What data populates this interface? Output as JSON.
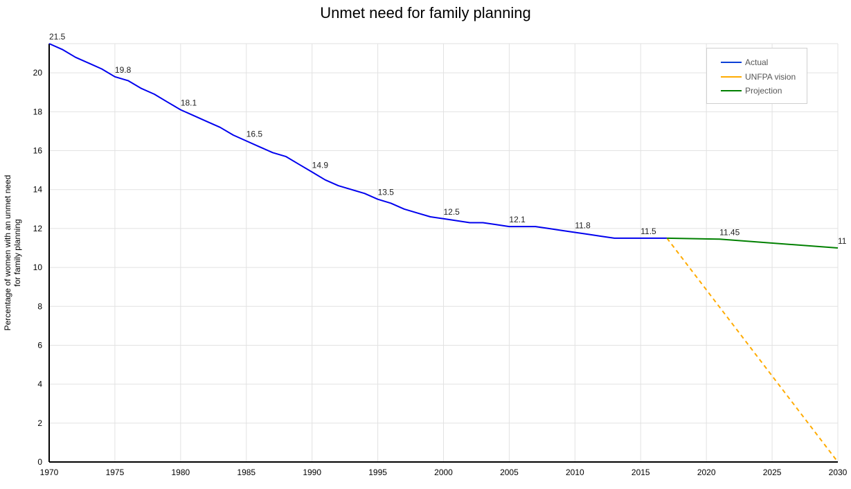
{
  "chart_data": {
    "type": "line",
    "title": "Unmet need for family planning",
    "xlabel": "",
    "ylabel": "Percentage of women with an unmet need\nfor family planning",
    "xlim": [
      1970,
      2030
    ],
    "ylim": [
      0,
      21.5
    ],
    "x_ticks": [
      "1970",
      "1975",
      "1980",
      "1985",
      "1990",
      "1995",
      "2000",
      "2005",
      "2010",
      "2015",
      "2020",
      "2025",
      "2030"
    ],
    "y_ticks": [
      "0",
      "2",
      "4",
      "6",
      "8",
      "10",
      "12",
      "14",
      "16",
      "18",
      "20"
    ],
    "grid": true,
    "legend_position": "top-right",
    "series": [
      {
        "name": "Actual",
        "color": "#0000ee",
        "style": "solid",
        "points": [
          [
            1970,
            21.5
          ],
          [
            1971,
            21.2
          ],
          [
            1972,
            20.8
          ],
          [
            1973,
            20.5
          ],
          [
            1974,
            20.2
          ],
          [
            1975,
            19.8
          ],
          [
            1976,
            19.6
          ],
          [
            1977,
            19.2
          ],
          [
            1978,
            18.9
          ],
          [
            1979,
            18.5
          ],
          [
            1980,
            18.1
          ],
          [
            1981,
            17.8
          ],
          [
            1982,
            17.5
          ],
          [
            1983,
            17.2
          ],
          [
            1984,
            16.8
          ],
          [
            1985,
            16.5
          ],
          [
            1986,
            16.2
          ],
          [
            1987,
            15.9
          ],
          [
            1988,
            15.7
          ],
          [
            1989,
            15.3
          ],
          [
            1990,
            14.9
          ],
          [
            1991,
            14.5
          ],
          [
            1992,
            14.2
          ],
          [
            1993,
            14.0
          ],
          [
            1994,
            13.8
          ],
          [
            1995,
            13.5
          ],
          [
            1996,
            13.3
          ],
          [
            1997,
            13.0
          ],
          [
            1998,
            12.8
          ],
          [
            1999,
            12.6
          ],
          [
            2000,
            12.5
          ],
          [
            2001,
            12.4
          ],
          [
            2002,
            12.3
          ],
          [
            2003,
            12.3
          ],
          [
            2004,
            12.2
          ],
          [
            2005,
            12.1
          ],
          [
            2006,
            12.1
          ],
          [
            2007,
            12.1
          ],
          [
            2008,
            12.0
          ],
          [
            2009,
            11.9
          ],
          [
            2010,
            11.8
          ],
          [
            2011,
            11.7
          ],
          [
            2012,
            11.6
          ],
          [
            2013,
            11.5
          ],
          [
            2014,
            11.5
          ],
          [
            2015,
            11.5
          ],
          [
            2016,
            11.5
          ],
          [
            2017,
            11.5
          ]
        ]
      },
      {
        "name": "UNFPA vision",
        "color": "#ffab00",
        "style": "dashed",
        "points": [
          [
            2017,
            11.5
          ],
          [
            2030,
            0
          ]
        ]
      },
      {
        "name": "Projection",
        "color": "#008000",
        "style": "solid",
        "points": [
          [
            2017,
            11.5
          ],
          [
            2021,
            11.45
          ],
          [
            2030,
            11.0
          ]
        ]
      }
    ],
    "data_labels": [
      {
        "x": 1970,
        "y": 21.5,
        "text": "21.5"
      },
      {
        "x": 1975,
        "y": 19.8,
        "text": "19.8"
      },
      {
        "x": 1980,
        "y": 18.1,
        "text": "18.1"
      },
      {
        "x": 1985,
        "y": 16.5,
        "text": "16.5"
      },
      {
        "x": 1990,
        "y": 14.9,
        "text": "14.9"
      },
      {
        "x": 1995,
        "y": 13.5,
        "text": "13.5"
      },
      {
        "x": 2000,
        "y": 12.5,
        "text": "12.5"
      },
      {
        "x": 2005,
        "y": 12.1,
        "text": "12.1"
      },
      {
        "x": 2010,
        "y": 11.8,
        "text": "11.8"
      },
      {
        "x": 2015,
        "y": 11.5,
        "text": "11.5"
      },
      {
        "x": 2021,
        "y": 11.45,
        "text": "11.45"
      },
      {
        "x": 2030,
        "y": 11.0,
        "text": "11"
      }
    ]
  }
}
